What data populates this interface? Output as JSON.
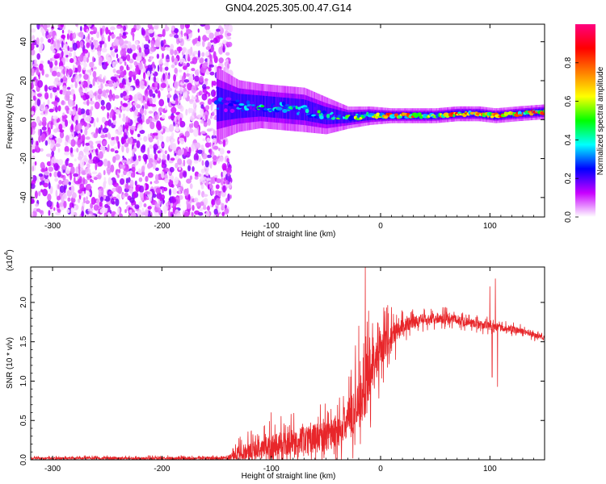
{
  "title": "GN04.2025.305.00.47.G14",
  "chart_data": [
    {
      "type": "heatmap",
      "name": "spectrogram",
      "xlabel": "Height of straight line (km)",
      "ylabel": "Frequency (Hz)",
      "xlim": [
        -320,
        150
      ],
      "ylim": [
        -50,
        49
      ],
      "x_ticks": [
        -300,
        -200,
        -100,
        0,
        100
      ],
      "x_tick_labels": [
        "-300",
        "-200",
        "-100",
        "0",
        "100"
      ],
      "y_ticks": [
        -40,
        -20,
        0,
        20,
        40
      ],
      "y_tick_labels": [
        "-40",
        "-20",
        "0",
        "20",
        "40"
      ],
      "noise_region_x": [
        -320,
        -145
      ],
      "ridge": [
        {
          "x": -150,
          "y": 8,
          "spread": 10,
          "amp": 0.3
        },
        {
          "x": -130,
          "y": 7,
          "spread": 7,
          "amp": 0.4
        },
        {
          "x": -110,
          "y": 7,
          "spread": 6,
          "amp": 0.5
        },
        {
          "x": -90,
          "y": 6,
          "spread": 6,
          "amp": 0.5
        },
        {
          "x": -70,
          "y": 5,
          "spread": 6,
          "amp": 0.5
        },
        {
          "x": -50,
          "y": 2,
          "spread": 5,
          "amp": 0.55
        },
        {
          "x": -30,
          "y": 1,
          "spread": 3,
          "amp": 0.6
        },
        {
          "x": -10,
          "y": 2,
          "spread": 2.5,
          "amp": 0.7
        },
        {
          "x": 10,
          "y": 2,
          "spread": 2,
          "amp": 0.9
        },
        {
          "x": 30,
          "y": 2,
          "spread": 2,
          "amp": 1.0
        },
        {
          "x": 50,
          "y": 2,
          "spread": 2,
          "amp": 0.8
        },
        {
          "x": 70,
          "y": 3,
          "spread": 2,
          "amp": 0.9
        },
        {
          "x": 90,
          "y": 3,
          "spread": 2,
          "amp": 0.8
        },
        {
          "x": 105,
          "y": 2,
          "spread": 2,
          "amp": 0.9
        },
        {
          "x": 125,
          "y": 3,
          "spread": 2,
          "amp": 1.0
        },
        {
          "x": 150,
          "y": 4,
          "spread": 2,
          "amp": 0.9
        }
      ],
      "colorbar": {
        "label": "Normalized spectral amplitude",
        "range": [
          0,
          1
        ],
        "ticks": [
          0.0,
          0.2,
          0.4,
          0.6,
          0.8
        ],
        "tick_labels": [
          "0.0",
          "0.2",
          "0.4",
          "0.6",
          "0.8"
        ],
        "colors": [
          "#ffffff",
          "#c800ff",
          "#0000ff",
          "#00ffff",
          "#00ff00",
          "#ffff00",
          "#ff7f00",
          "#ff0000",
          "#ff007f"
        ]
      }
    },
    {
      "type": "line",
      "name": "snr",
      "xlabel": "Height of straight line (km)",
      "ylabel": "SNR (10 * v/v)",
      "y_multiplier_label": "(x10",
      "y_multiplier_exp": "4",
      "y_multiplier_close": ")",
      "xlim": [
        -320,
        150
      ],
      "ylim": [
        0,
        2.45
      ],
      "x_ticks": [
        -300,
        -200,
        -100,
        0,
        100
      ],
      "x_tick_labels": [
        "-300",
        "-200",
        "-100",
        "0",
        "100"
      ],
      "y_ticks": [
        0.0,
        0.5,
        1.0,
        1.5,
        2.0
      ],
      "y_tick_labels": [
        "0.0",
        "0.5",
        "1.0",
        "1.5",
        "2.0"
      ],
      "line_color": "#e8262a",
      "envelope": {
        "x": [
          -320,
          -140,
          -130,
          -110,
          -90,
          -70,
          -50,
          -35,
          -25,
          -15,
          -10,
          0,
          10,
          20,
          30,
          40,
          50,
          60,
          70,
          80,
          90,
          100,
          110,
          120,
          130,
          140,
          150
        ],
        "y": [
          0.02,
          0.02,
          0.08,
          0.15,
          0.2,
          0.25,
          0.3,
          0.4,
          0.6,
          0.8,
          1.2,
          1.4,
          1.55,
          1.7,
          1.75,
          1.78,
          1.8,
          1.8,
          1.78,
          1.75,
          1.72,
          1.7,
          1.68,
          1.66,
          1.63,
          1.59,
          1.55
        ]
      },
      "noise_amplitude": {
        "x": [
          -320,
          -140,
          -130,
          -100,
          -60,
          -40,
          -20,
          -10,
          0,
          10,
          20,
          60,
          100,
          150
        ],
        "y": [
          0.02,
          0.03,
          0.15,
          0.25,
          0.3,
          0.35,
          0.5,
          0.6,
          0.4,
          0.3,
          0.15,
          0.1,
          0.08,
          0.05
        ]
      },
      "spikes": [
        {
          "x": -14,
          "y": 2.45
        },
        {
          "x": -20,
          "y": 1.7
        },
        {
          "x": -23,
          "y": 1.45
        },
        {
          "x": -55,
          "y": 0.7
        },
        {
          "x": -100,
          "y": 0.6
        },
        {
          "x": 100,
          "y": 2.2
        },
        {
          "x": 105,
          "y": 2.3
        },
        {
          "x": 102,
          "y": 1.05
        },
        {
          "x": 107,
          "y": 0.93
        }
      ]
    }
  ]
}
